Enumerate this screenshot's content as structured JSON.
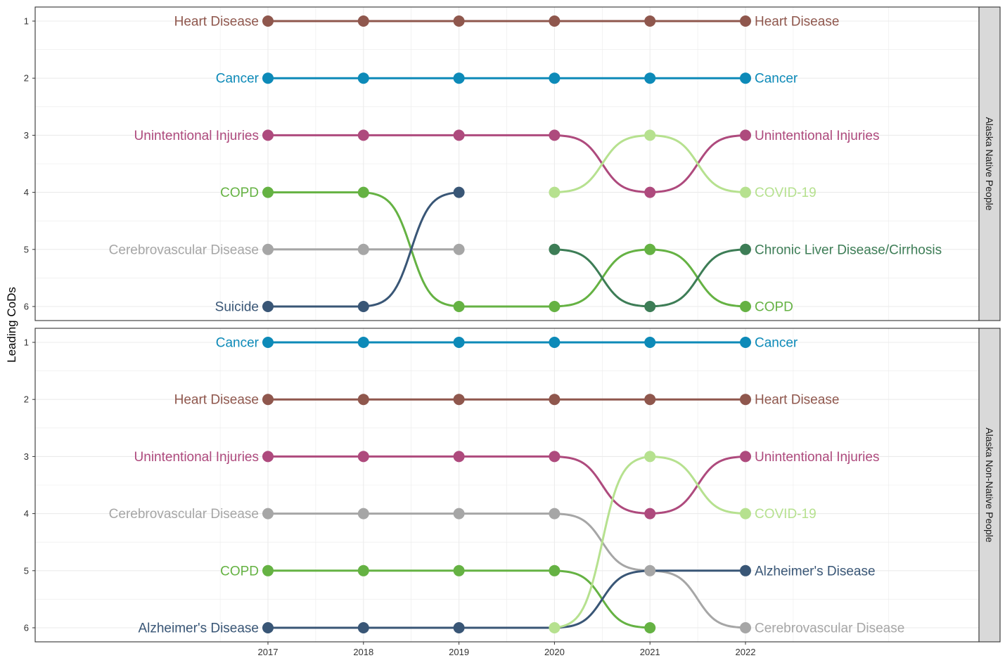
{
  "chart_data": {
    "type": "line",
    "subtype": "bump",
    "ylabel": "Leading CoDs",
    "x": [
      2017,
      2018,
      2019,
      2020,
      2021,
      2022
    ],
    "x_tick_labels": [
      "2017",
      "2018",
      "2019",
      "2020",
      "2021",
      "2022"
    ],
    "y_tick_labels": [
      "1",
      "2",
      "3",
      "4",
      "5",
      "6"
    ],
    "ylim": [
      1,
      6
    ],
    "y_reversed": true,
    "grid": true,
    "panels": [
      {
        "strip": "Alaska Native People",
        "series": [
          {
            "name": "Heart Disease",
            "color": "#8f574d",
            "values": [
              1,
              1,
              1,
              1,
              1,
              1
            ],
            "left_label": "Heart Disease",
            "right_label": "Heart Disease"
          },
          {
            "name": "Cancer",
            "color": "#0d8ab8",
            "values": [
              2,
              2,
              2,
              2,
              2,
              2
            ],
            "left_label": "Cancer",
            "right_label": "Cancer"
          },
          {
            "name": "Unintentional Injuries",
            "color": "#ae4a7d",
            "values": [
              3,
              3,
              3,
              3,
              4,
              3
            ],
            "left_label": "Unintentional Injuries",
            "right_label": "Unintentional Injuries"
          },
          {
            "name": "COPD",
            "color": "#65b243",
            "values": [
              4,
              4,
              6,
              6,
              5,
              6
            ],
            "left_label": "COPD",
            "right_label": "COPD"
          },
          {
            "name": "Cerebrovascular Disease",
            "color": "#a6a6a6",
            "values": [
              5,
              5,
              5,
              null,
              null,
              null
            ],
            "left_label": "Cerebrovascular Disease",
            "right_label": ""
          },
          {
            "name": "Suicide",
            "color": "#395676",
            "values": [
              6,
              6,
              4,
              null,
              null,
              null
            ],
            "left_label": "Suicide",
            "right_label": ""
          },
          {
            "name": "COVID-19",
            "color": "#b6e18f",
            "values": [
              null,
              null,
              null,
              4,
              3,
              4
            ],
            "left_label": "",
            "right_label": "COVID-19"
          },
          {
            "name": "Chronic Liver Disease/Cirrhosis",
            "color": "#3d7d56",
            "values": [
              null,
              null,
              null,
              5,
              6,
              5
            ],
            "left_label": "",
            "right_label": "Chronic Liver Disease/Cirrhosis"
          }
        ]
      },
      {
        "strip": "Alaska Non-Native People",
        "series": [
          {
            "name": "Cancer",
            "color": "#0d8ab8",
            "values": [
              1,
              1,
              1,
              1,
              1,
              1
            ],
            "left_label": "Cancer",
            "right_label": "Cancer"
          },
          {
            "name": "Heart Disease",
            "color": "#8f574d",
            "values": [
              2,
              2,
              2,
              2,
              2,
              2
            ],
            "left_label": "Heart Disease",
            "right_label": "Heart Disease"
          },
          {
            "name": "Unintentional Injuries",
            "color": "#ae4a7d",
            "values": [
              3,
              3,
              3,
              3,
              4,
              3
            ],
            "left_label": "Unintentional Injuries",
            "right_label": "Unintentional Injuries"
          },
          {
            "name": "Cerebrovascular Disease",
            "color": "#a6a6a6",
            "values": [
              4,
              4,
              4,
              4,
              5,
              6
            ],
            "left_label": "Cerebrovascular Disease",
            "right_label": "Cerebrovascular Disease"
          },
          {
            "name": "COPD",
            "color": "#65b243",
            "values": [
              5,
              5,
              5,
              5,
              6,
              null
            ],
            "left_label": "COPD",
            "right_label": ""
          },
          {
            "name": "Alzheimer's Disease",
            "color": "#395676",
            "values": [
              6,
              6,
              6,
              6,
              5,
              5
            ],
            "left_label": "Alzheimer's Disease",
            "right_label": "Alzheimer's Disease",
            "hide_points": [
              false,
              false,
              false,
              true,
              true,
              false
            ]
          },
          {
            "name": "COVID-19",
            "color": "#b6e18f",
            "values": [
              null,
              null,
              null,
              6,
              3,
              4
            ],
            "left_label": "",
            "right_label": "COVID-19"
          }
        ]
      }
    ]
  }
}
